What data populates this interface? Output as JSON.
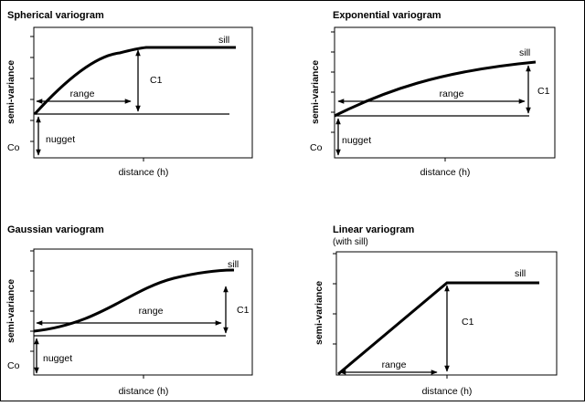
{
  "panels": [
    {
      "id": "spherical",
      "title": "Spherical variogram",
      "subtitle": "",
      "xlabel": "distance (h)",
      "ylabel": "semi-variance",
      "labels": {
        "sill": "sill",
        "range": "range",
        "c1": "C1",
        "nugget": "nugget",
        "co": "Co"
      }
    },
    {
      "id": "exponential",
      "title": "Exponential variogram",
      "subtitle": "",
      "xlabel": "distance (h)",
      "ylabel": "semi-variance",
      "labels": {
        "sill": "sill",
        "range": "range",
        "c1": "C1",
        "nugget": "nugget",
        "co": "Co"
      }
    },
    {
      "id": "gaussian",
      "title": "Gaussian variogram",
      "subtitle": "",
      "xlabel": "distance (h)",
      "ylabel": "semi-variance",
      "labels": {
        "sill": "sill",
        "range": "range",
        "c1": "C1",
        "nugget": "nugget",
        "co": "Co"
      }
    },
    {
      "id": "linear",
      "title": "Linear variogram",
      "subtitle": "(with sill)",
      "xlabel": "distance (h)",
      "ylabel": "semi-variance",
      "labels": {
        "sill": "sill",
        "range": "range",
        "c1": "C1",
        "nugget": "",
        "co": ""
      }
    }
  ]
}
